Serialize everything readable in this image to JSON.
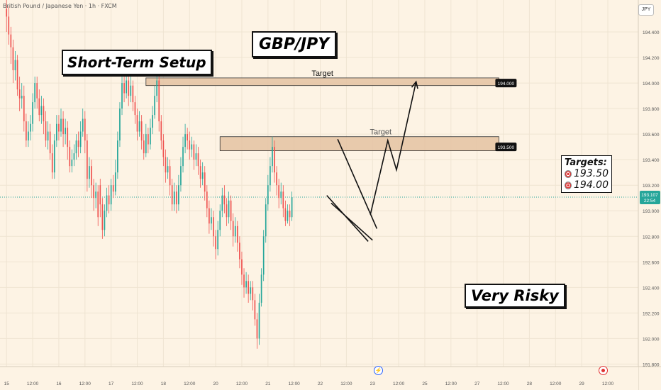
{
  "header": {
    "symbol": "British Pound / Japanese Yen · 1h · FXCM",
    "currency": "JPY"
  },
  "annotations": {
    "title": "GBP/JPY",
    "setup_label": "Short-Term Setup",
    "risk_label": "Very Risky",
    "targets_heading": "Targets:",
    "targets": [
      "193.50",
      "194.00"
    ],
    "zone_label": "Target"
  },
  "price_tag": {
    "price": "193.107",
    "countdown": "22:54"
  },
  "colors": {
    "up": "#26a69a",
    "down": "#ef5350",
    "zone_fill": "#e4c2a2",
    "zone_border": "#333333",
    "background": "#fdf3e4"
  },
  "icons": {
    "event": "lightning-icon",
    "marker": "red-dot-icon",
    "target": "target-icon"
  },
  "chart_data": {
    "type": "candlestick",
    "title": "GBP/JPY",
    "x_ticks": [
      "15",
      "12:00",
      "16",
      "12:00",
      "17",
      "12:00",
      "18",
      "12:00",
      "20",
      "12:00",
      "21",
      "12:00",
      "22",
      "12:00",
      "23",
      "12:00",
      "25",
      "12:00",
      "27",
      "12:00",
      "28",
      "12:00",
      "29",
      "12:00"
    ],
    "x_tick_positions": [
      0,
      12,
      24,
      36,
      48,
      60,
      72,
      84,
      96,
      108,
      120,
      132,
      144,
      156,
      168,
      180,
      192,
      204,
      216,
      228,
      240,
      252,
      264,
      276
    ],
    "y_ticks": [
      191.8,
      192.0,
      192.2,
      192.4,
      192.6,
      192.8,
      193.0,
      193.2,
      193.4,
      193.6,
      193.8,
      194.0,
      194.2,
      194.4
    ],
    "ylim": [
      191.78,
      194.65
    ],
    "xlim": [
      -3,
      290
    ],
    "current_price": 193.107,
    "zones": [
      {
        "label": "Target",
        "price": 194.0,
        "value_tag": "194.000",
        "x_start": 64,
        "x_end": 226,
        "low": 193.98,
        "high": 194.04
      },
      {
        "label": "Target",
        "price": 193.5,
        "value_tag": "193.500",
        "x_start": 98,
        "x_end": 226,
        "low": 193.47,
        "high": 193.58
      }
    ],
    "wedge_lines": [
      {
        "x1": 152,
        "y1": 193.56,
        "x2": 170,
        "y2": 192.86
      },
      {
        "x1": 147,
        "y1": 193.12,
        "x2": 166,
        "y2": 192.76
      },
      {
        "x1": 149,
        "y1": 193.06,
        "x2": 168,
        "y2": 192.77
      }
    ],
    "projection_path": [
      [
        167,
        192.97
      ],
      [
        175,
        193.55
      ],
      [
        179,
        193.32
      ],
      [
        188,
        194.01
      ]
    ],
    "candles": [
      [
        194.58,
        194.52,
        194.65,
        194.4
      ],
      [
        194.52,
        194.38,
        194.6,
        194.3
      ],
      [
        194.38,
        194.28,
        194.44,
        194.15
      ],
      [
        194.28,
        194.1,
        194.34,
        194.0
      ],
      [
        194.1,
        194.18,
        194.25,
        194.02
      ],
      [
        194.18,
        193.95,
        194.22,
        193.9
      ],
      [
        193.95,
        193.88,
        194.05,
        193.78
      ],
      [
        193.88,
        193.9,
        194.0,
        193.8
      ],
      [
        193.9,
        193.7,
        193.98,
        193.62
      ],
      [
        193.7,
        193.55,
        193.76,
        193.5
      ],
      [
        193.55,
        193.62,
        193.7,
        193.5
      ],
      [
        193.62,
        193.68,
        193.75,
        193.55
      ],
      [
        193.68,
        193.85,
        193.92,
        193.62
      ],
      [
        193.85,
        194.0,
        194.05,
        193.8
      ],
      [
        194.0,
        193.88,
        194.05,
        193.8
      ],
      [
        193.88,
        193.75,
        193.95,
        193.7
      ],
      [
        193.75,
        193.82,
        193.9,
        193.68
      ],
      [
        193.82,
        193.7,
        193.88,
        193.6
      ],
      [
        193.7,
        193.55,
        193.78,
        193.5
      ],
      [
        193.55,
        193.62,
        193.7,
        193.48
      ],
      [
        193.62,
        193.45,
        193.68,
        193.4
      ],
      [
        193.45,
        193.3,
        193.52,
        193.25
      ],
      [
        193.3,
        193.55,
        193.6,
        193.25
      ],
      [
        193.55,
        193.68,
        193.75,
        193.5
      ],
      [
        193.68,
        193.62,
        193.75,
        193.55
      ],
      [
        193.62,
        193.72,
        193.8,
        193.58
      ],
      [
        193.72,
        193.6,
        193.78,
        193.5
      ],
      [
        193.6,
        193.65,
        193.72,
        193.52
      ],
      [
        193.65,
        193.5,
        193.7,
        193.4
      ],
      [
        193.5,
        193.35,
        193.55,
        193.3
      ],
      [
        193.35,
        193.4,
        193.48,
        193.3
      ],
      [
        193.4,
        193.45,
        193.52,
        193.35
      ],
      [
        193.45,
        193.55,
        193.6,
        193.4
      ],
      [
        193.55,
        193.5,
        193.62,
        193.42
      ],
      [
        193.5,
        193.62,
        193.7,
        193.45
      ],
      [
        193.62,
        193.72,
        193.8,
        193.58
      ],
      [
        193.72,
        193.55,
        193.78,
        193.45
      ],
      [
        193.55,
        193.25,
        193.6,
        193.15
      ],
      [
        193.25,
        193.35,
        193.42,
        193.18
      ],
      [
        193.35,
        193.2,
        193.4,
        193.1
      ],
      [
        193.2,
        193.1,
        193.25,
        193.0
      ],
      [
        193.1,
        193.15,
        193.22,
        193.02
      ],
      [
        193.15,
        192.95,
        193.2,
        192.88
      ],
      [
        193.2,
        193.05,
        193.25,
        192.95
      ],
      [
        193.05,
        192.85,
        193.1,
        192.78
      ],
      [
        192.85,
        193.0,
        193.05,
        192.8
      ],
      [
        193.0,
        193.12,
        193.18,
        192.95
      ],
      [
        193.12,
        193.05,
        193.2,
        192.98
      ],
      [
        193.05,
        193.2,
        193.25,
        193.0
      ],
      [
        193.2,
        193.15,
        193.28,
        193.1
      ],
      [
        193.15,
        193.3,
        193.4,
        193.12
      ],
      [
        193.3,
        193.55,
        193.62,
        193.25
      ],
      [
        193.55,
        193.8,
        193.85,
        193.5
      ],
      [
        193.8,
        194.0,
        194.05,
        193.75
      ],
      [
        194.0,
        193.92,
        194.05,
        193.85
      ],
      [
        193.92,
        194.02,
        194.08,
        193.88
      ],
      [
        194.02,
        193.9,
        194.06,
        193.82
      ],
      [
        193.9,
        193.98,
        194.05,
        193.85
      ],
      [
        193.98,
        193.85,
        194.02,
        193.78
      ],
      [
        193.85,
        193.75,
        193.9,
        193.68
      ],
      [
        193.75,
        193.62,
        193.8,
        193.55
      ],
      [
        193.62,
        193.7,
        193.78,
        193.58
      ],
      [
        193.7,
        193.55,
        193.75,
        193.48
      ],
      [
        193.55,
        193.45,
        193.6,
        193.4
      ],
      [
        193.45,
        193.6,
        193.68,
        193.42
      ],
      [
        193.6,
        193.52,
        193.65,
        193.45
      ],
      [
        193.52,
        193.65,
        193.72,
        193.48
      ],
      [
        193.65,
        193.75,
        193.82,
        193.6
      ],
      [
        193.75,
        193.9,
        193.98,
        193.72
      ],
      [
        193.9,
        194.02,
        194.05,
        193.85
      ],
      [
        194.02,
        193.7,
        194.05,
        193.62
      ],
      [
        193.7,
        193.55,
        193.75,
        193.48
      ],
      [
        193.55,
        193.42,
        193.6,
        193.35
      ],
      [
        193.42,
        193.3,
        193.48,
        193.22
      ],
      [
        193.3,
        193.35,
        193.42,
        193.25
      ],
      [
        193.35,
        193.2,
        193.4,
        193.12
      ],
      [
        193.2,
        193.05,
        193.25,
        193.0
      ],
      [
        193.05,
        193.15,
        193.22,
        193.0
      ],
      [
        193.15,
        193.05,
        193.2,
        192.98
      ],
      [
        193.05,
        193.2,
        193.28,
        193.0
      ],
      [
        193.2,
        193.35,
        193.42,
        193.15
      ],
      [
        193.35,
        193.5,
        193.58,
        193.3
      ],
      [
        193.5,
        193.6,
        193.68,
        193.45
      ],
      [
        193.6,
        193.55,
        193.65,
        193.48
      ],
      [
        193.55,
        193.48,
        193.62,
        193.4
      ],
      [
        193.48,
        193.52,
        193.58,
        193.42
      ],
      [
        193.52,
        193.4,
        193.55,
        193.32
      ],
      [
        193.4,
        193.45,
        193.52,
        193.35
      ],
      [
        193.45,
        193.35,
        193.5,
        193.28
      ],
      [
        193.35,
        193.25,
        193.4,
        193.18
      ],
      [
        193.25,
        193.3,
        193.38,
        193.2
      ],
      [
        193.3,
        193.15,
        193.35,
        193.08
      ],
      [
        193.15,
        193.02,
        193.2,
        192.95
      ],
      [
        193.02,
        192.9,
        193.08,
        192.82
      ],
      [
        192.9,
        192.95,
        193.02,
        192.85
      ],
      [
        192.95,
        192.8,
        193.0,
        192.72
      ],
      [
        192.8,
        192.7,
        192.85,
        192.62
      ],
      [
        192.7,
        192.85,
        192.92,
        192.65
      ],
      [
        192.85,
        193.0,
        193.05,
        192.8
      ],
      [
        193.0,
        193.12,
        193.18,
        192.95
      ],
      [
        193.12,
        193.05,
        193.2,
        192.98
      ],
      [
        193.05,
        192.95,
        193.1,
        192.88
      ],
      [
        192.95,
        193.08,
        193.15,
        192.9
      ],
      [
        193.08,
        192.92,
        193.12,
        192.85
      ],
      [
        192.92,
        192.8,
        192.98,
        192.72
      ],
      [
        192.8,
        192.88,
        192.95,
        192.75
      ],
      [
        192.88,
        192.75,
        192.92,
        192.68
      ],
      [
        192.75,
        192.62,
        192.8,
        192.55
      ],
      [
        192.62,
        192.5,
        192.68,
        192.42
      ],
      [
        192.5,
        192.4,
        192.55,
        192.32
      ],
      [
        192.4,
        192.45,
        192.52,
        192.35
      ],
      [
        192.45,
        192.35,
        192.5,
        192.28
      ],
      [
        192.35,
        192.4,
        192.45,
        192.3
      ],
      [
        192.4,
        192.3,
        192.45,
        192.22
      ],
      [
        192.3,
        192.15,
        192.35,
        192.1
      ],
      [
        192.15,
        192.0,
        192.2,
        191.92
      ],
      [
        192.0,
        192.28,
        192.35,
        191.95
      ],
      [
        192.28,
        192.5,
        192.55,
        192.25
      ],
      [
        192.5,
        192.8,
        192.85,
        192.45
      ],
      [
        192.8,
        193.05,
        193.1,
        192.75
      ],
      [
        193.05,
        193.2,
        193.28,
        193.0
      ],
      [
        193.2,
        193.35,
        193.42,
        193.15
      ],
      [
        193.35,
        193.5,
        193.58,
        193.3
      ],
      [
        193.5,
        193.3,
        193.55,
        193.22
      ],
      [
        193.3,
        193.2,
        193.35,
        193.12
      ],
      [
        193.2,
        193.1,
        193.25,
        193.02
      ],
      [
        193.1,
        193.15,
        193.22,
        193.05
      ],
      [
        193.15,
        193.02,
        193.2,
        192.95
      ],
      [
        193.02,
        192.92,
        193.08,
        192.88
      ],
      [
        192.92,
        193.0,
        193.05,
        192.9
      ],
      [
        193.0,
        192.95,
        193.05,
        192.88
      ],
      [
        192.95,
        193.107,
        193.15,
        192.92
      ]
    ]
  }
}
